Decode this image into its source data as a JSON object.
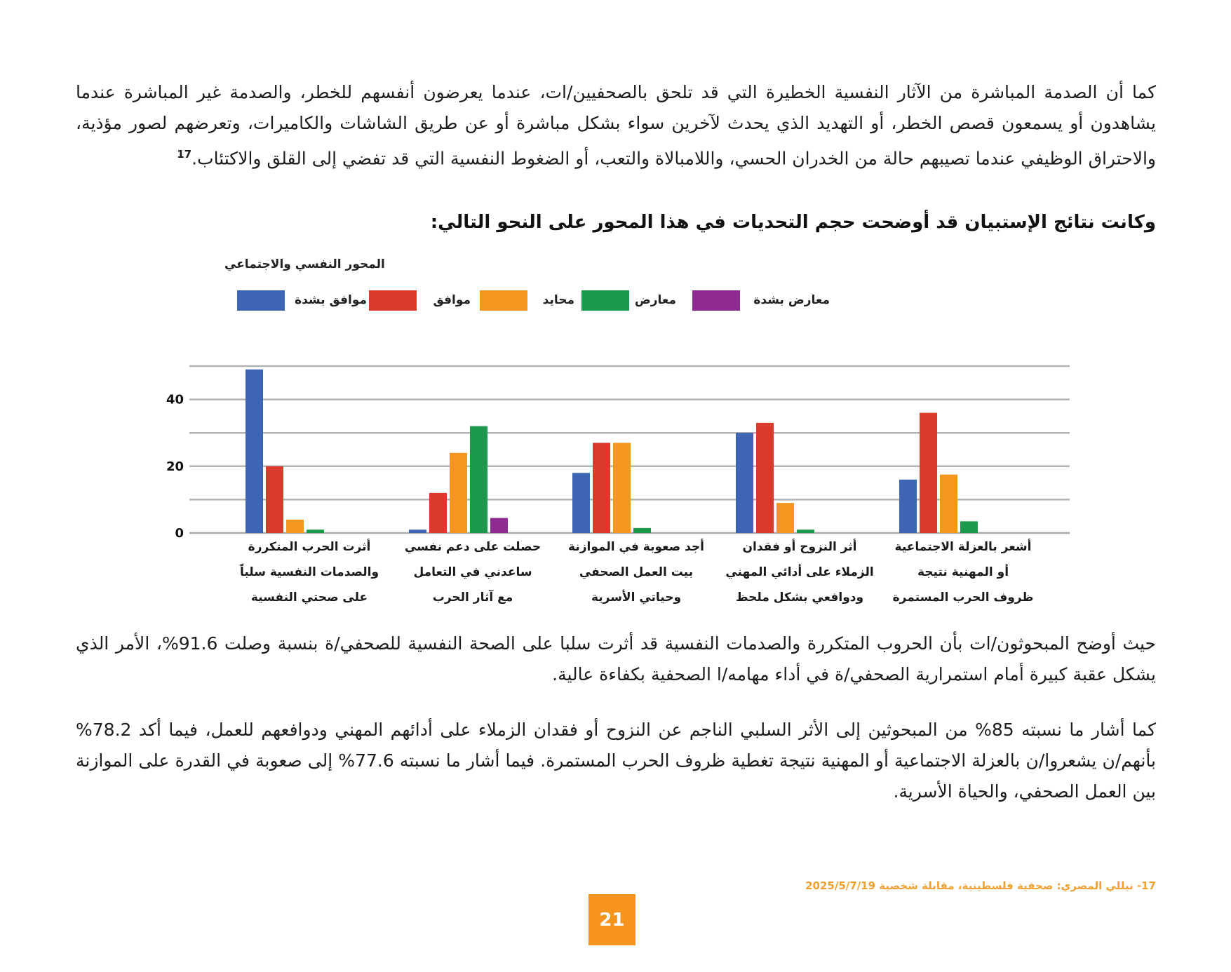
{
  "paragraph_1": "كما أن الصدمة المباشرة من الآثار النفسية الخطيرة التي قد تلحق بالصحفيين/ات، عندما يعرضون أنفسهم للخطر، والصدمة غير المباشرة عندما يشاهدون أو يسمعون قصص الخطر، أو التهديد الذي يحدث لآخرين سواء بشكل مباشرة أو عن طريق الشاشات والكاميرات، وتعرضهم لصور مؤذية، والاحتراق الوظيفي عندما تصيبهم حالة من الخدران الحسي، واللامبالاة والتعب، أو الضغوط النفسية التي قد تفضي إلى القلق والاكتئاب.",
  "paragraph_1_ref": "17",
  "bold_line": "وكانت نتائج الإستبيان قد أوضحت حجم التحديات في هذا المحور على النحو التالي:",
  "chart_data": {
    "type": "bar",
    "title": "المحور النفسي والاجتماعي",
    "categories": [
      "أثرت الحرب المتكررة\nوالصدمات النفسية سلباً\nعلى صحتي النفسية",
      "حصلت على دعم  نفسي\nساعدني في التعامل\nمع آثار الحرب",
      "أجد صعوبة في الموازنة\nبيت العمل الصحفي\nوحياتي الأسرية",
      "أثر النزوح أو فقدان\nالزملاء على أدائي المهني\nودوافعي بشكل ملحظ",
      "أشعر بالعزلة الاجتماعية\nأو المهنية نتيجة\nظروف الحرب المستمرة"
    ],
    "series": [
      {
        "name": "موافق بشدة",
        "color": "#3e64b4",
        "values": [
          49,
          1,
          18,
          30,
          16
        ]
      },
      {
        "name": "موافق",
        "color": "#d93a2b",
        "values": [
          20,
          12,
          27,
          33,
          36
        ]
      },
      {
        "name": "محايد",
        "color": "#f7961e",
        "values": [
          4,
          24,
          27,
          9,
          17.5
        ]
      },
      {
        "name": "معارض",
        "color": "#1a9a4a",
        "values": [
          1,
          32,
          1.5,
          1,
          3.5
        ]
      },
      {
        "name": "معارض بشدة",
        "color": "#8e2a92",
        "values": [
          0,
          4.5,
          0,
          0,
          0
        ]
      }
    ],
    "y_ticks": [
      "0",
      "20",
      "40"
    ],
    "ylim": [
      0,
      50
    ],
    "grid": true,
    "legend_position": "top"
  },
  "paragraph_2": "حيث أوضح المبحوثون/ات بأن الحروب المتكررة والصدمات النفسية قد أثرت سلبا على الصحة النفسية للصحفي/ة بنسبة وصلت 91.6%، الأمر الذي يشكل عقبة كبيرة أمام استمرارية الصحفي/ة في أداء مهامه/ا الصحفية بكفاءة عالية.",
  "paragraph_3": "كما أشار ما نسبته 85% من المبحوثين إلى الأثر السلبي الناجم عن النزوح أو فقدان الزملاء على أدائهم المهني ودوافعهم للعمل، فيما أكد 78.2% بأنهم/ن يشعروا/ن بالعزلة الاجتماعية أو المهنية نتيجة تغطية ظروف الحرب المستمرة. فيما أشار ما نسبته 77.6% إلى صعوبة في القدرة على الموازنة بين العمل الصحفي، والحياة الأسرية.",
  "footnote": "17- نيللي المصري: صحفية فلسطينية، مقابلة شخصية 2025/5/7/19",
  "page_number": "21"
}
